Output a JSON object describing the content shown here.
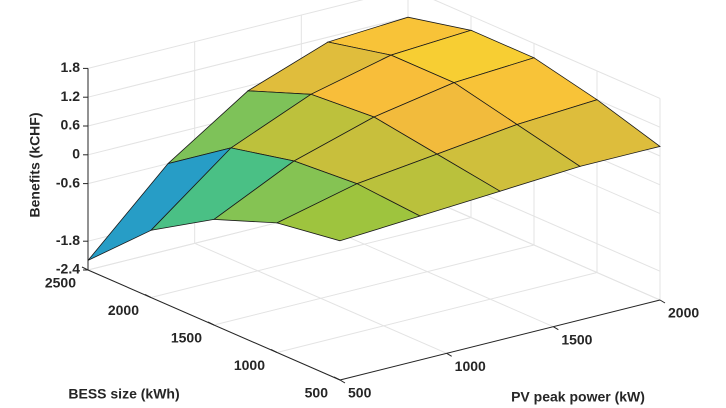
{
  "chart_data": {
    "type": "surface",
    "xlabel": "PV peak power (kW)",
    "ylabel": "BESS size (kWh)",
    "zlabel": "Benefits (kCHF)",
    "x": [
      500,
      875,
      1250,
      1625,
      2000
    ],
    "y": [
      500,
      1000,
      1500,
      2000,
      2500
    ],
    "z": [
      [
        0.5,
        0.6,
        0.7,
        0.8,
        0.8
      ],
      [
        0.3,
        0.7,
        0.9,
        1.1,
        1.2
      ],
      [
        -0.2,
        0.6,
        1.1,
        1.4,
        1.5
      ],
      [
        -1.0,
        0.3,
        1.0,
        1.4,
        1.5
      ],
      [
        -2.2,
        -0.6,
        0.5,
        1.1,
        1.2
      ]
    ],
    "xlim": [
      500,
      2000
    ],
    "xticks": [
      500,
      1000,
      1500,
      2000
    ],
    "ylim": [
      500,
      2500
    ],
    "yticks": [
      500,
      1000,
      1500,
      2000,
      2500
    ],
    "zlim": [
      -2.4,
      1.8
    ],
    "zticks": [
      -2.4,
      -1.8,
      -0.6,
      0,
      0.6,
      1.2,
      1.8
    ],
    "grid": true,
    "colormap": "parula",
    "edgecolor": "#1a1a1a"
  }
}
